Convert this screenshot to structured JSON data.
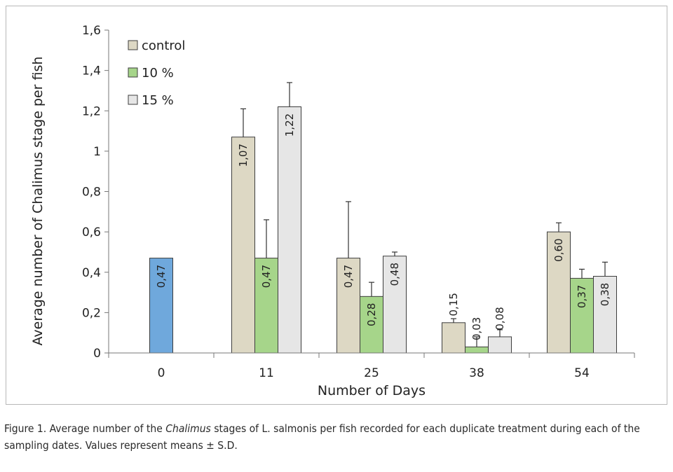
{
  "chart_data": {
    "type": "bar",
    "xlabel": "Number of Days",
    "ylabel": "Average number of Chalimus stage per fish",
    "ylim": [
      0,
      1.6
    ],
    "yticks": [
      "0",
      "0,2",
      "0,4",
      "0,6",
      "0,8",
      "1",
      "1,2",
      "1,4",
      "1,6"
    ],
    "categories": [
      "0",
      "11",
      "25",
      "38",
      "54"
    ],
    "legend_position": "top-left",
    "series": [
      {
        "name": "control",
        "color": "#ddd8c4",
        "values": [
          null,
          1.07,
          0.47,
          0.15,
          0.6
        ],
        "labels": [
          "",
          "1,07",
          "0,47",
          "0,15",
          "0,60"
        ],
        "errors": [
          null,
          0.14,
          0.28,
          0.02,
          0.045
        ]
      },
      {
        "name": "10 %",
        "color": "#a6d58a",
        "values": [
          null,
          0.47,
          0.28,
          0.03,
          0.37
        ],
        "labels": [
          "",
          "0,47",
          "0,28",
          "0,03",
          "0,37"
        ],
        "errors": [
          null,
          0.19,
          0.07,
          0.05,
          0.045
        ]
      },
      {
        "name": "15 %",
        "color": "#e6e6e6",
        "values": [
          null,
          1.22,
          0.48,
          0.08,
          0.38
        ],
        "labels": [
          "",
          "1,22",
          "0,48",
          "0,08",
          "0,38"
        ],
        "errors": [
          null,
          0.12,
          0.02,
          0.035,
          0.07
        ]
      }
    ],
    "baseline": {
      "category": "0",
      "value": 0.47,
      "label": "0,47",
      "color": "#6fa8dc"
    }
  },
  "caption": {
    "prefix": "Figure 1. Average number of the ",
    "italic": "Chalimus",
    "suffix": " stages of L. salmonis per fish recorded for each duplicate treatment during each of the sampling dates. Values represent means ± S.D."
  }
}
